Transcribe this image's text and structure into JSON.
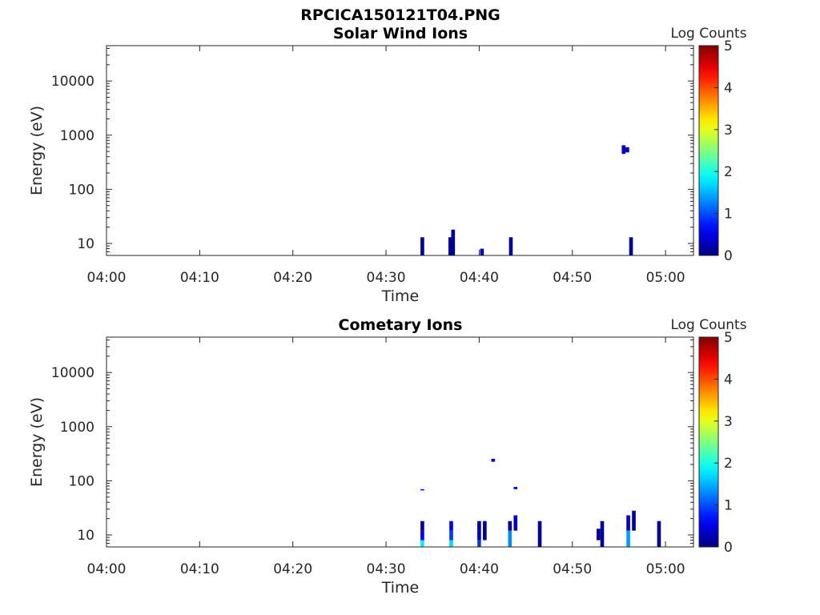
{
  "figure": {
    "title": "RPCICA150121T04.PNG"
  },
  "chart_data": [
    {
      "type": "heatmap",
      "title": "Solar Wind Ions",
      "xlabel": "Time",
      "ylabel": "Energy (eV)",
      "x_ticks": [
        "04:00",
        "04:10",
        "04:20",
        "04:30",
        "04:40",
        "04:50",
        "05:00"
      ],
      "xlim_minutes": [
        0,
        63
      ],
      "y_scale": "log",
      "y_ticks": [
        "10",
        "100",
        "1000",
        "10000"
      ],
      "ylim": [
        6,
        45000
      ],
      "colorbar": {
        "label": "Log Counts",
        "ticks": [
          "0",
          "1",
          "2",
          "3",
          "4",
          "5"
        ],
        "range": [
          0,
          5
        ],
        "colormap": "jet"
      },
      "cells": [
        {
          "t": 33.9,
          "e_low": 6,
          "e_high": 13,
          "log_counts": 0.1
        },
        {
          "t": 36.9,
          "e_low": 6,
          "e_high": 13,
          "log_counts": 0.1
        },
        {
          "t": 37.2,
          "e_low": 6,
          "e_high": 18,
          "log_counts": 0.1
        },
        {
          "t": 40.3,
          "e_low": 6,
          "e_high": 8,
          "log_counts": 0.3
        },
        {
          "t": 43.4,
          "e_low": 6,
          "e_high": 13,
          "log_counts": 0.1
        },
        {
          "t": 55.5,
          "e_low": 450,
          "e_high": 650,
          "log_counts": 0.3
        },
        {
          "t": 55.9,
          "e_low": 480,
          "e_high": 600,
          "log_counts": 0.3
        },
        {
          "t": 56.3,
          "e_low": 6,
          "e_high": 13,
          "log_counts": 0.1
        }
      ]
    },
    {
      "type": "heatmap",
      "title": "Cometary Ions",
      "xlabel": "Time",
      "ylabel": "Energy (eV)",
      "x_ticks": [
        "04:00",
        "04:10",
        "04:20",
        "04:30",
        "04:40",
        "04:50",
        "05:00"
      ],
      "xlim_minutes": [
        0,
        63
      ],
      "y_scale": "log",
      "y_ticks": [
        "10",
        "100",
        "1000",
        "10000"
      ],
      "ylim": [
        6,
        45000
      ],
      "colorbar": {
        "label": "Log Counts",
        "ticks": [
          "0",
          "1",
          "2",
          "3",
          "4",
          "5"
        ],
        "range": [
          0,
          5
        ],
        "colormap": "jet"
      },
      "cells": [
        {
          "t": 33.9,
          "e_low": 12,
          "e_high": 18,
          "log_counts": 0.1
        },
        {
          "t": 33.9,
          "e_low": 8,
          "e_high": 12,
          "log_counts": 0.6
        },
        {
          "t": 33.9,
          "e_low": 6,
          "e_high": 8,
          "log_counts": 1.8
        },
        {
          "t": 33.9,
          "e_low": 67,
          "e_high": 70,
          "log_counts": 0.5
        },
        {
          "t": 37.0,
          "e_low": 12,
          "e_high": 18,
          "log_counts": 0.5
        },
        {
          "t": 37.0,
          "e_low": 8,
          "e_high": 12,
          "log_counts": 0.9
        },
        {
          "t": 37.0,
          "e_low": 6,
          "e_high": 8,
          "log_counts": 1.7
        },
        {
          "t": 40.0,
          "e_low": 12,
          "e_high": 18,
          "log_counts": 0.1
        },
        {
          "t": 40.0,
          "e_low": 8,
          "e_high": 12,
          "log_counts": 0.3
        },
        {
          "t": 40.0,
          "e_low": 6,
          "e_high": 8,
          "log_counts": 1.0
        },
        {
          "t": 40.6,
          "e_low": 8,
          "e_high": 18,
          "log_counts": 0.1
        },
        {
          "t": 41.5,
          "e_low": 225,
          "e_high": 255,
          "log_counts": 0.3
        },
        {
          "t": 43.3,
          "e_low": 12,
          "e_high": 18,
          "log_counts": 0.1
        },
        {
          "t": 43.3,
          "e_low": 6,
          "e_high": 12,
          "log_counts": 1.3
        },
        {
          "t": 43.9,
          "e_low": 12,
          "e_high": 23,
          "log_counts": 0.3
        },
        {
          "t": 43.9,
          "e_low": 70,
          "e_high": 77,
          "log_counts": 0.5
        },
        {
          "t": 46.5,
          "e_low": 6,
          "e_high": 18,
          "log_counts": 0.1
        },
        {
          "t": 52.8,
          "e_low": 8,
          "e_high": 13,
          "log_counts": 0.1
        },
        {
          "t": 53.2,
          "e_low": 6,
          "e_high": 18,
          "log_counts": 0.1
        },
        {
          "t": 56.0,
          "e_low": 12,
          "e_high": 23,
          "log_counts": 0.3
        },
        {
          "t": 56.0,
          "e_low": 6,
          "e_high": 12,
          "log_counts": 1.4
        },
        {
          "t": 56.6,
          "e_low": 12,
          "e_high": 28,
          "log_counts": 0.1
        },
        {
          "t": 59.3,
          "e_low": 6,
          "e_high": 18,
          "log_counts": 0.1
        }
      ]
    }
  ]
}
